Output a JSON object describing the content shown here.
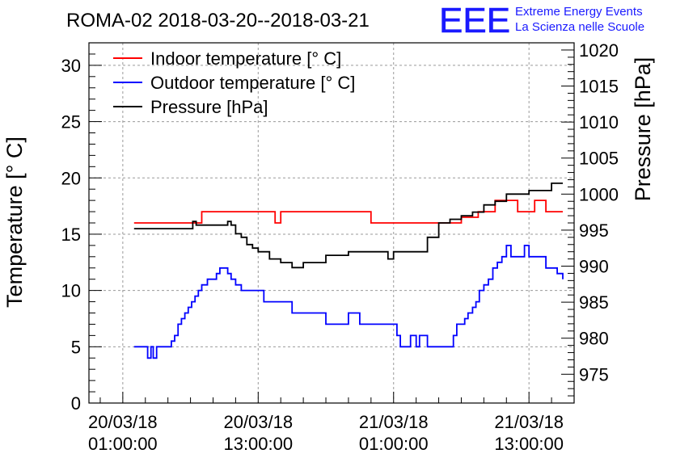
{
  "chart_data": {
    "type": "line",
    "title": "ROMA-02 2018-03-20--2018-03-21",
    "logo": {
      "letters": "EEE",
      "line1": "Extreme Energy Events",
      "line2": "La Scienza nelle Scuole"
    },
    "ylabel_left": "Temperature [° C]",
    "ylabel_right": "Pressure [hPa]",
    "ylim_left": [
      0,
      32
    ],
    "ylim_right": [
      971,
      1021
    ],
    "xlim_hours": [
      -3,
      40
    ],
    "x_ticks": [
      {
        "hour": 0,
        "line1": "20/03/18",
        "line2": "01:00:00"
      },
      {
        "hour": 12,
        "line1": "20/03/18",
        "line2": "13:00:00"
      },
      {
        "hour": 24,
        "line1": "21/03/18",
        "line2": "01:00:00"
      },
      {
        "hour": 36,
        "line1": "21/03/18",
        "line2": "13:00:00"
      }
    ],
    "y_ticks_left": [
      0,
      5,
      10,
      15,
      20,
      25,
      30
    ],
    "y_ticks_right": [
      975,
      980,
      985,
      990,
      995,
      1000,
      1005,
      1010,
      1015,
      1020
    ],
    "grid": true,
    "legend_position": "top-left",
    "colors": {
      "indoor": "#ff0000",
      "outdoor": "#0000ff",
      "pressure": "#000000",
      "logo": "#1a1aff"
    },
    "series": [
      {
        "name": "Indoor temperature [° C]",
        "axis": "left",
        "color": "#ff0000",
        "x": [
          1,
          7,
          7,
          13.5,
          13.5,
          14,
          14,
          22,
          22,
          30,
          30,
          31.5,
          31.5,
          33,
          33,
          35,
          35,
          36.5,
          36.5,
          37.5,
          37.5,
          39
        ],
        "y": [
          16,
          16,
          17,
          17,
          16,
          16,
          17,
          17,
          16,
          16,
          16.5,
          16.5,
          17,
          17,
          18,
          18,
          17,
          17,
          18,
          18,
          17,
          17
        ]
      },
      {
        "name": "Outdoor temperature [° C]",
        "axis": "left",
        "color": "#0000ff",
        "x": [
          1,
          2,
          2.2,
          2.5,
          2.7,
          3,
          3.3,
          3.5,
          4,
          4.3,
          4.6,
          4.9,
          5.2,
          5.5,
          5.8,
          6.1,
          6.4,
          6.7,
          7,
          7.5,
          8,
          8.3,
          8.6,
          9,
          9.3,
          9.6,
          10,
          10.5,
          11,
          12,
          12.5,
          13,
          14,
          15,
          16,
          17,
          18,
          19,
          20,
          21,
          22,
          23,
          23.5,
          24,
          24.3,
          24.6,
          25,
          25.5,
          26,
          26.3,
          26.6,
          27,
          27.3,
          27.6,
          28,
          29,
          29.3,
          29.6,
          30,
          30.3,
          30.6,
          31,
          31.3,
          31.6,
          32,
          32.4,
          32.8,
          33.2,
          33.6,
          34,
          34.4,
          34.8,
          35.2,
          35.6,
          36,
          36.5,
          37,
          37.5,
          38,
          38.5,
          39
        ],
        "y": [
          5,
          5,
          4,
          5,
          4,
          5,
          5,
          5,
          5,
          5.5,
          6,
          7,
          7.5,
          8,
          8.5,
          9,
          9.5,
          10,
          10.5,
          11,
          11,
          11.5,
          12,
          12,
          11.5,
          11,
          10.5,
          10,
          10,
          10,
          9,
          9,
          9,
          8,
          8,
          8,
          7,
          7,
          8,
          7,
          7,
          7,
          7,
          7,
          6,
          5,
          5,
          6,
          5,
          6,
          6,
          5,
          5,
          5,
          5,
          5,
          6,
          7,
          7,
          7.5,
          8,
          8.5,
          9,
          10,
          10.5,
          11,
          12,
          12.5,
          13,
          14,
          13,
          13,
          13,
          14,
          13,
          13,
          13,
          12,
          12,
          11.5,
          11
        ]
      },
      {
        "name": "Pressure [hPa]",
        "axis": "right",
        "color": "#000000",
        "x": [
          1,
          4,
          6,
          6.2,
          6.5,
          7,
          8,
          9,
          9.3,
          9.6,
          10,
          10.5,
          11,
          11.5,
          12,
          13,
          14,
          15,
          16,
          17,
          18,
          19,
          20,
          21,
          22,
          23,
          23.5,
          24,
          25,
          26,
          27,
          28,
          29,
          30,
          31,
          32,
          33,
          34,
          35,
          36,
          37,
          38,
          39
        ],
        "y": [
          995.2,
          995.2,
          995.2,
          996.2,
          995.7,
          995.7,
          995.7,
          995.7,
          996.2,
          995.7,
          994.5,
          994.0,
          993.0,
          992.5,
          992.0,
          991.0,
          990.5,
          989.8,
          990.5,
          990.5,
          991.5,
          991.5,
          992.0,
          992.0,
          992.0,
          992.0,
          991.0,
          992.0,
          992.0,
          992.0,
          994.0,
          996.0,
          996.5,
          997.0,
          997.5,
          998.5,
          999.0,
          1000.0,
          1000.0,
          1000.5,
          1000.5,
          1001.5,
          1001.5
        ]
      }
    ]
  }
}
